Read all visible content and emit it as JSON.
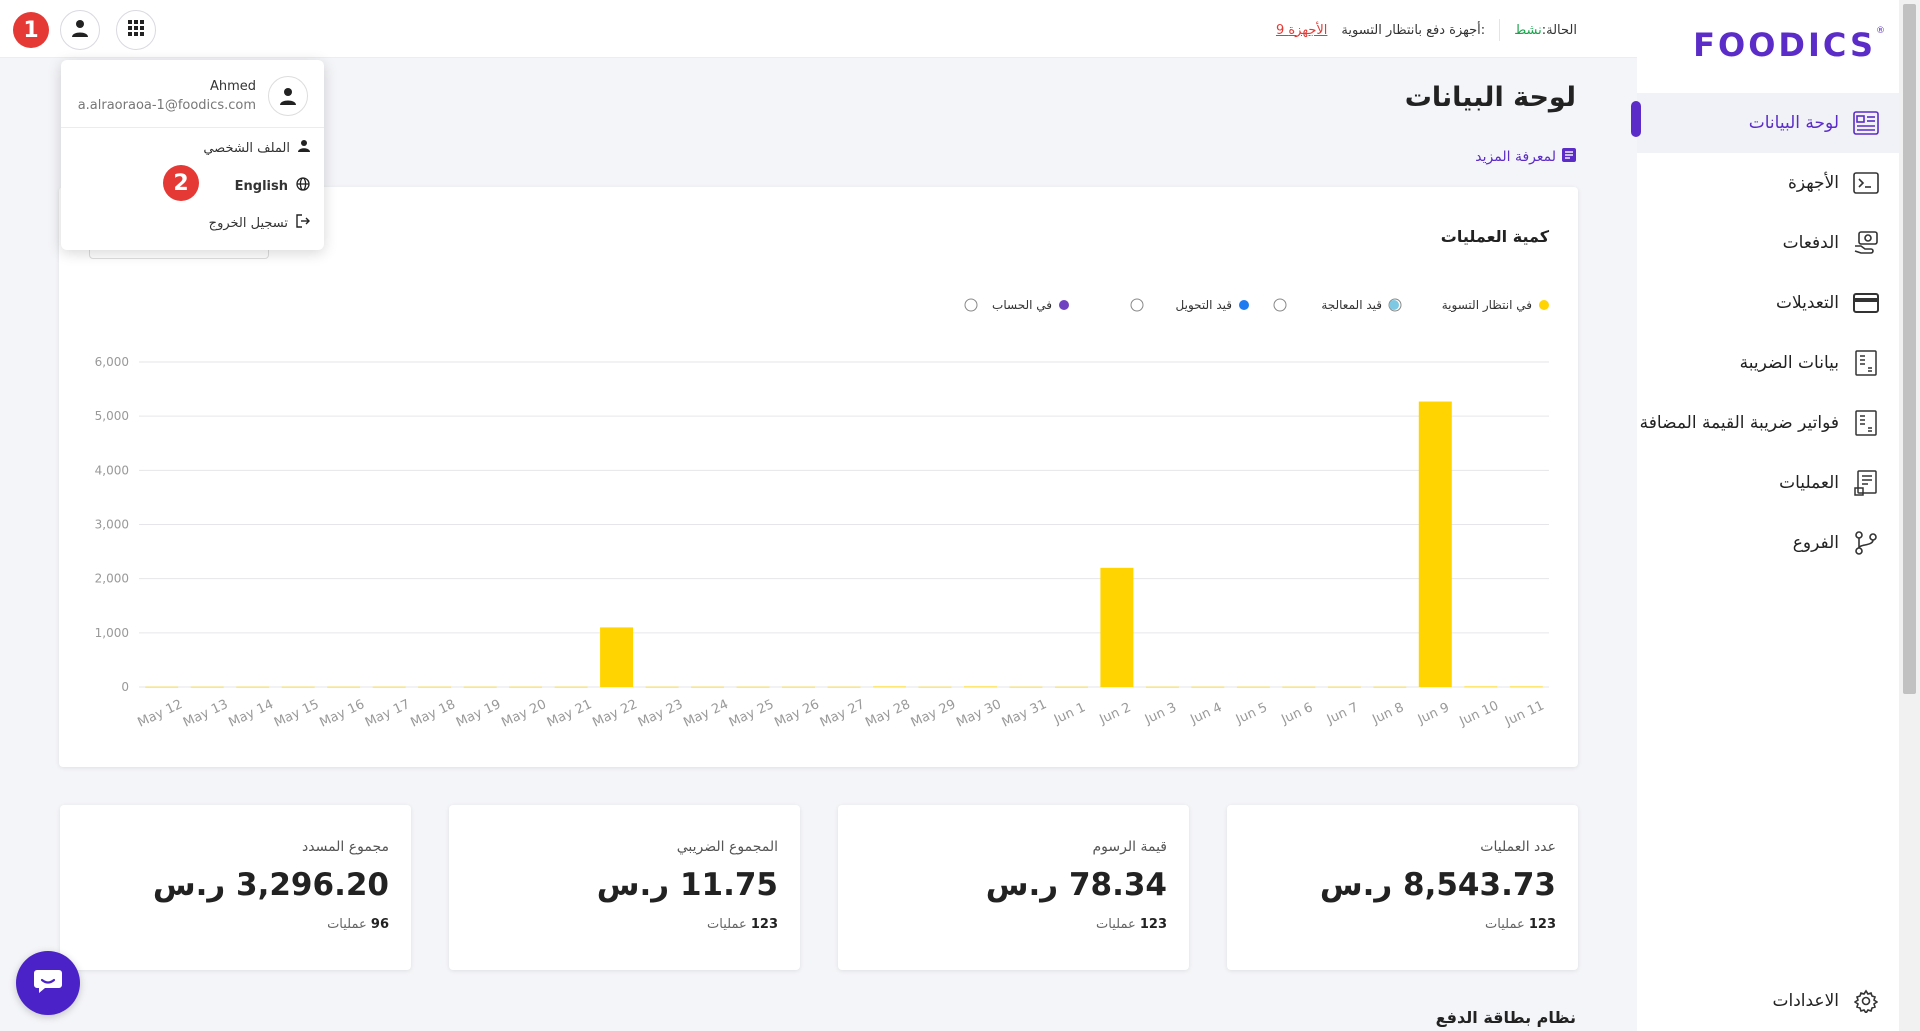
{
  "brand": {
    "logo": "FOODICS",
    "registered": "®",
    "accent": "#5b2cc7"
  },
  "sidebar": {
    "items": [
      {
        "label": "لوحة البيانات",
        "icon": "dashboard-icon",
        "active": true
      },
      {
        "label": "الأجهزة",
        "icon": "terminal-icon"
      },
      {
        "label": "الدفعات",
        "icon": "payments-icon"
      },
      {
        "label": "التعديلات",
        "icon": "card-icon"
      },
      {
        "label": "بيانات الضريبة",
        "icon": "tax-doc-icon"
      },
      {
        "label": "فواتير ضريبة القيمة المضافة",
        "icon": "vat-invoice-icon"
      },
      {
        "label": "العمليات",
        "icon": "transactions-icon"
      },
      {
        "label": "الفروع",
        "icon": "branches-icon"
      }
    ],
    "settings": "الاعدادات"
  },
  "topbar": {
    "status_label": "الحالة:",
    "status_value": "نشط",
    "pending_label": "أجهزة دفع بانتظار التسوية:",
    "pending_link": "9 الأجهزة"
  },
  "badges": {
    "one": "1",
    "two": "2"
  },
  "dropdown": {
    "name": "Ahmed",
    "email": "a.alraoraoa-1@foodics.com",
    "profile": "الملف الشخصي",
    "language": "English",
    "logout": "تسجيل الخروج"
  },
  "page": {
    "title": "لوحة البيانات",
    "learn_more": "لمعرفة المزيد",
    "section_title": "نظام بطاقة الدفع"
  },
  "chart_data": {
    "type": "bar",
    "title": "كمية العمليات",
    "legend": [
      {
        "name": "في انتظار التسوية",
        "color": "#ffd400"
      },
      {
        "name": "قيد المعالجة",
        "color": "#7ec8e3"
      },
      {
        "name": "قيد التحويل",
        "color": "#1e7bf0"
      },
      {
        "name": "في الحساب",
        "color": "#6f42c1"
      }
    ],
    "legend_position": "top",
    "ylim": [
      0,
      6000
    ],
    "yticks": [
      "0",
      "1,000",
      "2,000",
      "3,000",
      "4,000",
      "5,000",
      "6,000"
    ],
    "categories": [
      "May 12",
      "May 13",
      "May 14",
      "May 15",
      "May 16",
      "May 17",
      "May 18",
      "May 19",
      "May 20",
      "May 21",
      "May 22",
      "May 23",
      "May 24",
      "May 25",
      "May 26",
      "May 27",
      "May 28",
      "May 29",
      "May 30",
      "May 31",
      "Jun 1",
      "Jun 2",
      "Jun 3",
      "Jun 4",
      "Jun 5",
      "Jun 6",
      "Jun 7",
      "Jun 8",
      "Jun 9",
      "Jun 10",
      "Jun 11"
    ],
    "series": [
      {
        "name": "في انتظار التسوية",
        "values": [
          5,
          5,
          5,
          5,
          5,
          5,
          5,
          5,
          5,
          5,
          1100,
          5,
          5,
          5,
          5,
          5,
          10,
          5,
          10,
          5,
          5,
          2200,
          5,
          5,
          5,
          5,
          5,
          5,
          5270,
          10,
          10
        ]
      }
    ],
    "grid": true
  },
  "stats": [
    {
      "label": "عدد العمليات",
      "value": "8,543.73 ر.س",
      "count": "123",
      "count_label": "عمليات"
    },
    {
      "label": "قيمة الرسوم",
      "value": "78.34 ر.س",
      "count": "123",
      "count_label": "عمليات"
    },
    {
      "label": "المجموع الضريبي",
      "value": "11.75 ر.س",
      "count": "123",
      "count_label": "عمليات"
    },
    {
      "label": "مجموع المسدد",
      "value": "3,296.20 ر.س",
      "count": "96",
      "count_label": "عمليات"
    }
  ]
}
